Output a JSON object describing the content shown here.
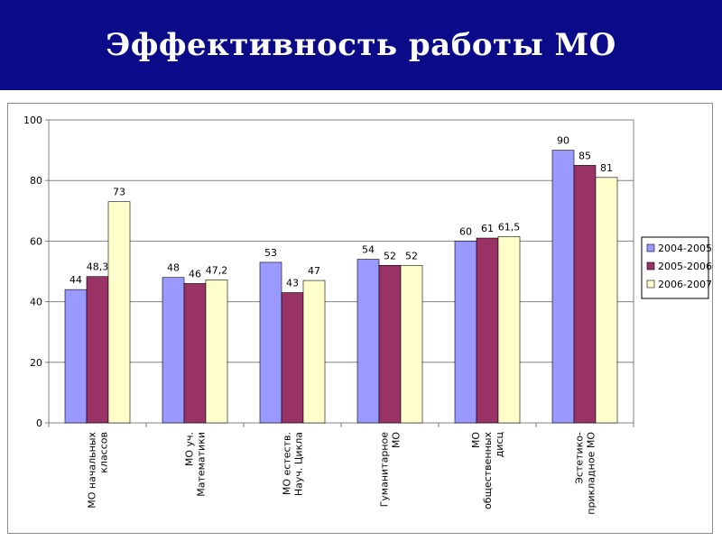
{
  "header": {
    "title": "Эффективность работы МО",
    "background": "#0b0b8a"
  },
  "chart_data": {
    "type": "bar",
    "title": "",
    "xlabel": "",
    "ylabel": "",
    "ylim": [
      0,
      100
    ],
    "yticks": [
      0,
      20,
      40,
      60,
      80,
      100
    ],
    "grid": true,
    "legend_position": "right",
    "categories": [
      [
        "МО начальных",
        "классов"
      ],
      [
        "МО уч.",
        "Математики"
      ],
      [
        "МО естеств.",
        "Науч. Цикла"
      ],
      [
        "Гуманитарное",
        "МО"
      ],
      [
        "МО",
        "общественных",
        "дисц"
      ],
      [
        "Эстетико-",
        "прикладное МО"
      ]
    ],
    "series": [
      {
        "name": "2004-2005",
        "color": "#9999ff",
        "values": [
          44,
          48,
          53,
          54,
          60,
          90
        ],
        "labels": [
          "44",
          "48",
          "53",
          "54",
          "60",
          "90"
        ]
      },
      {
        "name": "2005-2006",
        "color": "#993366",
        "values": [
          48.3,
          46,
          43,
          52,
          61,
          85
        ],
        "labels": [
          "48,3",
          "46",
          "43",
          "52",
          "61",
          "85"
        ]
      },
      {
        "name": "2006-2007",
        "color": "#ffffcc",
        "values": [
          73,
          47.2,
          47,
          52,
          61.5,
          81
        ],
        "labels": [
          "73",
          "47,2",
          "47",
          "52",
          "61,5",
          "81"
        ]
      }
    ]
  }
}
